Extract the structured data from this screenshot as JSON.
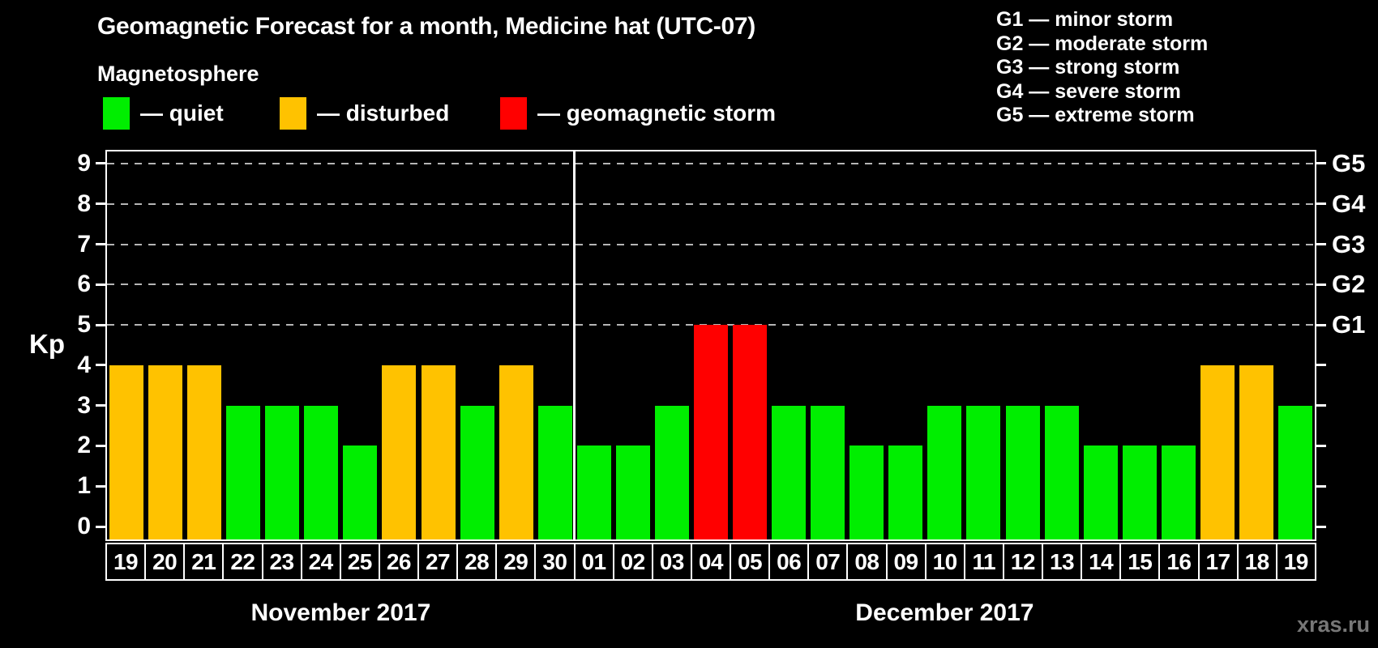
{
  "title": "Geomagnetic Forecast for a month, Medicine hat (UTC-07)",
  "subtitle": "Magnetosphere",
  "legend": {
    "items": [
      {
        "key": "quiet",
        "label": "— quiet",
        "color": "#00EE00"
      },
      {
        "key": "disturbed",
        "label": "— disturbed",
        "color": "#FFC200"
      },
      {
        "key": "storm",
        "label": "— geomagnetic storm",
        "color": "#FF0000"
      }
    ]
  },
  "g_legend": [
    "G1 — minor storm",
    "G2 — moderate storm",
    "G3 — strong storm",
    "G4 — severe storm",
    "G5 — extreme storm"
  ],
  "watermark": "xras.ru",
  "chart_data": {
    "type": "bar",
    "title": "Geomagnetic Forecast for a month, Medicine hat (UTC-07)",
    "ylabel": "Kp",
    "ylim": [
      -0.32,
      9.3
    ],
    "y_ticks": [
      0,
      1,
      2,
      3,
      4,
      5,
      6,
      7,
      8,
      9
    ],
    "right_axis_labels": {
      "5": "G1",
      "6": "G2",
      "7": "G3",
      "8": "G4",
      "9": "G5"
    },
    "gridlines_at": [
      5,
      6,
      7,
      8,
      9
    ],
    "grid": "dashed horizontal lines at G-storm levels",
    "legend_position": "top-left",
    "colors": {
      "quiet": "#00EE00",
      "disturbed": "#FFC200",
      "storm": "#FF0000"
    },
    "grid_color": "#b5b5b5",
    "months": [
      {
        "label": "November 2017",
        "days": [
          {
            "date": "19",
            "kp": 4,
            "status": "disturbed"
          },
          {
            "date": "20",
            "kp": 4,
            "status": "disturbed"
          },
          {
            "date": "21",
            "kp": 4,
            "status": "disturbed"
          },
          {
            "date": "22",
            "kp": 3,
            "status": "quiet"
          },
          {
            "date": "23",
            "kp": 3,
            "status": "quiet"
          },
          {
            "date": "24",
            "kp": 3,
            "status": "quiet"
          },
          {
            "date": "25",
            "kp": 2,
            "status": "quiet"
          },
          {
            "date": "26",
            "kp": 4,
            "status": "disturbed"
          },
          {
            "date": "27",
            "kp": 4,
            "status": "disturbed"
          },
          {
            "date": "28",
            "kp": 3,
            "status": "quiet"
          },
          {
            "date": "29",
            "kp": 4,
            "status": "disturbed"
          },
          {
            "date": "30",
            "kp": 3,
            "status": "quiet"
          }
        ]
      },
      {
        "label": "December 2017",
        "days": [
          {
            "date": "01",
            "kp": 2,
            "status": "quiet"
          },
          {
            "date": "02",
            "kp": 2,
            "status": "quiet"
          },
          {
            "date": "03",
            "kp": 3,
            "status": "quiet"
          },
          {
            "date": "04",
            "kp": 5,
            "status": "storm"
          },
          {
            "date": "05",
            "kp": 5,
            "status": "storm"
          },
          {
            "date": "06",
            "kp": 3,
            "status": "quiet"
          },
          {
            "date": "07",
            "kp": 3,
            "status": "quiet"
          },
          {
            "date": "08",
            "kp": 2,
            "status": "quiet"
          },
          {
            "date": "09",
            "kp": 2,
            "status": "quiet"
          },
          {
            "date": "10",
            "kp": 3,
            "status": "quiet"
          },
          {
            "date": "11",
            "kp": 3,
            "status": "quiet"
          },
          {
            "date": "12",
            "kp": 3,
            "status": "quiet"
          },
          {
            "date": "13",
            "kp": 3,
            "status": "quiet"
          },
          {
            "date": "14",
            "kp": 2,
            "status": "quiet"
          },
          {
            "date": "15",
            "kp": 2,
            "status": "quiet"
          },
          {
            "date": "16",
            "kp": 2,
            "status": "quiet"
          },
          {
            "date": "17",
            "kp": 4,
            "status": "disturbed"
          },
          {
            "date": "18",
            "kp": 4,
            "status": "disturbed"
          },
          {
            "date": "19",
            "kp": 3,
            "status": "quiet"
          }
        ]
      }
    ]
  }
}
